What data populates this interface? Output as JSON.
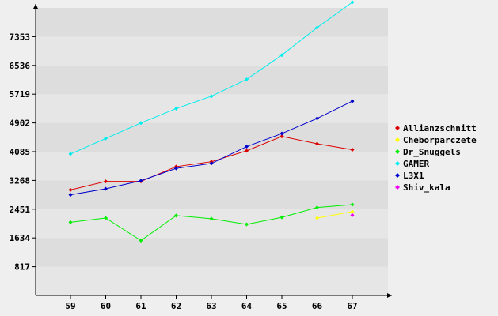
{
  "chart_data": {
    "type": "line",
    "title": "",
    "xlabel": "",
    "ylabel": "",
    "x": [
      59,
      60,
      61,
      62,
      63,
      64,
      65,
      66,
      67
    ],
    "x_ticks": [
      "59",
      "60",
      "61",
      "62",
      "63",
      "64",
      "65",
      "66",
      "67"
    ],
    "y_ticks": [
      "817",
      "1634",
      "2451",
      "3268",
      "4085",
      "4902",
      "5719",
      "6536",
      "7353"
    ],
    "y_tick_values": [
      817,
      1634,
      2451,
      3268,
      4085,
      4902,
      5719,
      6536,
      7353
    ],
    "ylim": [
      0,
      8170
    ],
    "grid": "horizontal alternating bands",
    "legend_position": "right",
    "colors": {
      "background": "#efefef",
      "band_light": "#e6e6e6",
      "band_dark": "#dddddd",
      "axis": "#000000"
    },
    "series": [
      {
        "name": "Allianzschnitt",
        "color": "#dd0000",
        "values": [
          3000,
          3240,
          3240,
          3660,
          3800,
          4110,
          4520,
          4310,
          4140
        ]
      },
      {
        "name": "Cheborparczete",
        "color": "#ffff00",
        "values": [
          null,
          null,
          null,
          null,
          null,
          null,
          null,
          2200,
          2380
        ]
      },
      {
        "name": "Dr_Snuggels",
        "color": "#00ee00",
        "values": [
          2080,
          2200,
          1560,
          2270,
          2180,
          2020,
          2220,
          2500,
          2580
        ]
      },
      {
        "name": "GAMER",
        "color": "#00eeee",
        "values": [
          4020,
          4460,
          4900,
          5310,
          5660,
          6140,
          6830,
          7610,
          8330
        ]
      },
      {
        "name": "L3X1",
        "color": "#0000cc",
        "values": [
          2860,
          3030,
          3260,
          3610,
          3750,
          4230,
          4600,
          5030,
          5520
        ]
      },
      {
        "name": "Shiv_kala",
        "color": "#ee00ee",
        "values": [
          null,
          null,
          null,
          null,
          null,
          null,
          null,
          null,
          2280
        ]
      }
    ]
  }
}
